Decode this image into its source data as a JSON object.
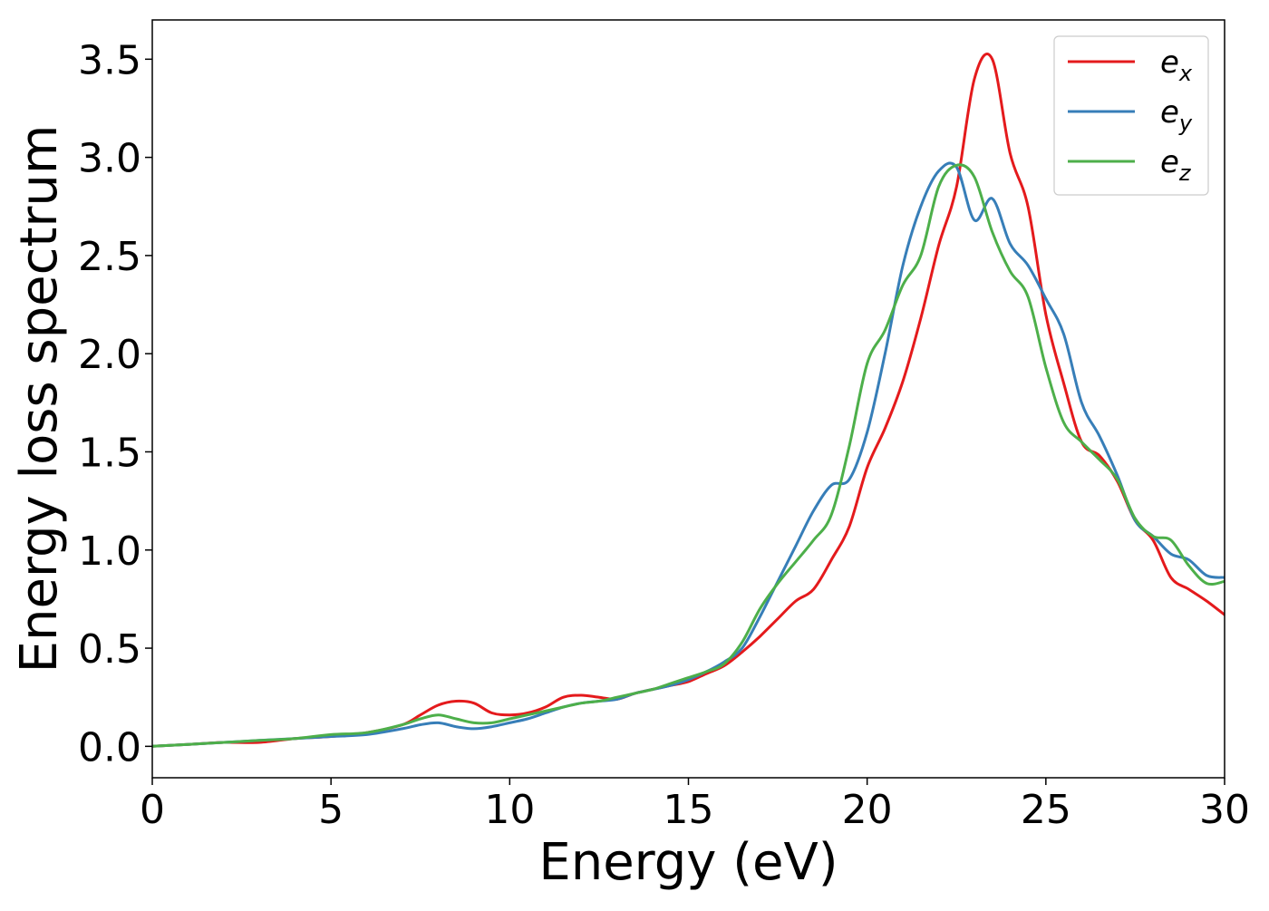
{
  "chart_data": {
    "type": "line",
    "title": "",
    "xlabel": "Energy (eV)",
    "ylabel": "Energy loss spectrum",
    "xlim": [
      0,
      30
    ],
    "ylim": [
      -0.16,
      3.7
    ],
    "xticks": [
      0,
      5,
      10,
      15,
      20,
      25,
      30
    ],
    "xtick_labels": [
      "0",
      "5",
      "10",
      "15",
      "20",
      "25",
      "30"
    ],
    "yticks": [
      0.0,
      0.5,
      1.0,
      1.5,
      2.0,
      2.5,
      3.0,
      3.5
    ],
    "ytick_labels": [
      "0.0",
      "0.5",
      "1.0",
      "1.5",
      "2.0",
      "2.5",
      "3.0",
      "3.5"
    ],
    "grid": false,
    "legend_position": "top-right",
    "series": [
      {
        "name": "e_x",
        "label_main": "e",
        "label_sub": "x",
        "color": "#e41a1c",
        "x": [
          0,
          1,
          2,
          3,
          4,
          5,
          6,
          7,
          7.5,
          8,
          8.5,
          9,
          9.5,
          10,
          10.5,
          11,
          11.5,
          12,
          12.5,
          13,
          13.5,
          14,
          14.5,
          15,
          15.5,
          16,
          16.5,
          17,
          17.5,
          18,
          18.5,
          19,
          19.5,
          20,
          20.5,
          21,
          21.5,
          22,
          22.5,
          23,
          23.5,
          24,
          24.5,
          25,
          25.5,
          26,
          26.5,
          27,
          27.5,
          28,
          28.5,
          29,
          29.5,
          30
        ],
        "y": [
          0,
          0.01,
          0.02,
          0.02,
          0.04,
          0.05,
          0.07,
          0.11,
          0.16,
          0.21,
          0.23,
          0.22,
          0.17,
          0.16,
          0.17,
          0.2,
          0.25,
          0.26,
          0.25,
          0.24,
          0.27,
          0.29,
          0.31,
          0.33,
          0.37,
          0.41,
          0.48,
          0.56,
          0.65,
          0.74,
          0.8,
          0.95,
          1.12,
          1.42,
          1.62,
          1.86,
          2.18,
          2.55,
          2.85,
          3.4,
          3.5,
          3.02,
          2.75,
          2.2,
          1.85,
          1.55,
          1.48,
          1.35,
          1.15,
          1.05,
          0.86,
          0.8,
          0.74,
          0.67
        ]
      },
      {
        "name": "e_y",
        "label_main": "e",
        "label_sub": "y",
        "color": "#377eb8",
        "x": [
          0,
          1,
          2,
          3,
          4,
          5,
          6,
          7,
          7.5,
          8,
          8.5,
          9,
          9.5,
          10,
          10.5,
          11,
          11.5,
          12,
          12.5,
          13,
          13.5,
          14,
          14.5,
          15,
          15.5,
          16,
          16.5,
          17,
          17.5,
          18,
          18.5,
          19,
          19.5,
          20,
          20.5,
          21,
          21.5,
          22,
          22.5,
          23,
          23.5,
          24,
          24.5,
          25,
          25.5,
          26,
          26.5,
          27,
          27.5,
          28,
          28.5,
          29,
          29.5,
          30
        ],
        "y": [
          0,
          0.01,
          0.02,
          0.03,
          0.04,
          0.05,
          0.06,
          0.09,
          0.11,
          0.12,
          0.1,
          0.09,
          0.1,
          0.12,
          0.14,
          0.17,
          0.2,
          0.22,
          0.23,
          0.24,
          0.27,
          0.29,
          0.31,
          0.34,
          0.38,
          0.43,
          0.5,
          0.66,
          0.84,
          1.02,
          1.2,
          1.33,
          1.36,
          1.6,
          2.0,
          2.45,
          2.75,
          2.93,
          2.95,
          2.68,
          2.79,
          2.56,
          2.45,
          2.28,
          2.1,
          1.75,
          1.58,
          1.38,
          1.15,
          1.07,
          0.98,
          0.95,
          0.87,
          0.86
        ]
      },
      {
        "name": "e_z",
        "label_main": "e",
        "label_sub": "z",
        "color": "#4daf4a",
        "x": [
          0,
          1,
          2,
          3,
          4,
          5,
          6,
          7,
          7.5,
          8,
          8.5,
          9,
          9.5,
          10,
          10.5,
          11,
          11.5,
          12,
          12.5,
          13,
          13.5,
          14,
          14.5,
          15,
          15.5,
          16,
          16.5,
          17,
          17.5,
          18,
          18.5,
          19,
          19.5,
          20,
          20.5,
          21,
          21.5,
          22,
          22.5,
          23,
          23.5,
          24,
          24.5,
          25,
          25.5,
          26,
          26.5,
          27,
          27.5,
          28,
          28.5,
          29,
          29.5,
          30
        ],
        "y": [
          0,
          0.01,
          0.02,
          0.03,
          0.04,
          0.06,
          0.07,
          0.11,
          0.14,
          0.16,
          0.14,
          0.12,
          0.12,
          0.14,
          0.16,
          0.18,
          0.2,
          0.22,
          0.23,
          0.25,
          0.27,
          0.29,
          0.32,
          0.35,
          0.38,
          0.42,
          0.53,
          0.7,
          0.83,
          0.94,
          1.05,
          1.18,
          1.53,
          1.95,
          2.12,
          2.35,
          2.5,
          2.85,
          2.96,
          2.9,
          2.62,
          2.42,
          2.29,
          1.93,
          1.65,
          1.55,
          1.46,
          1.36,
          1.16,
          1.07,
          1.05,
          0.92,
          0.83,
          0.84
        ]
      }
    ]
  }
}
